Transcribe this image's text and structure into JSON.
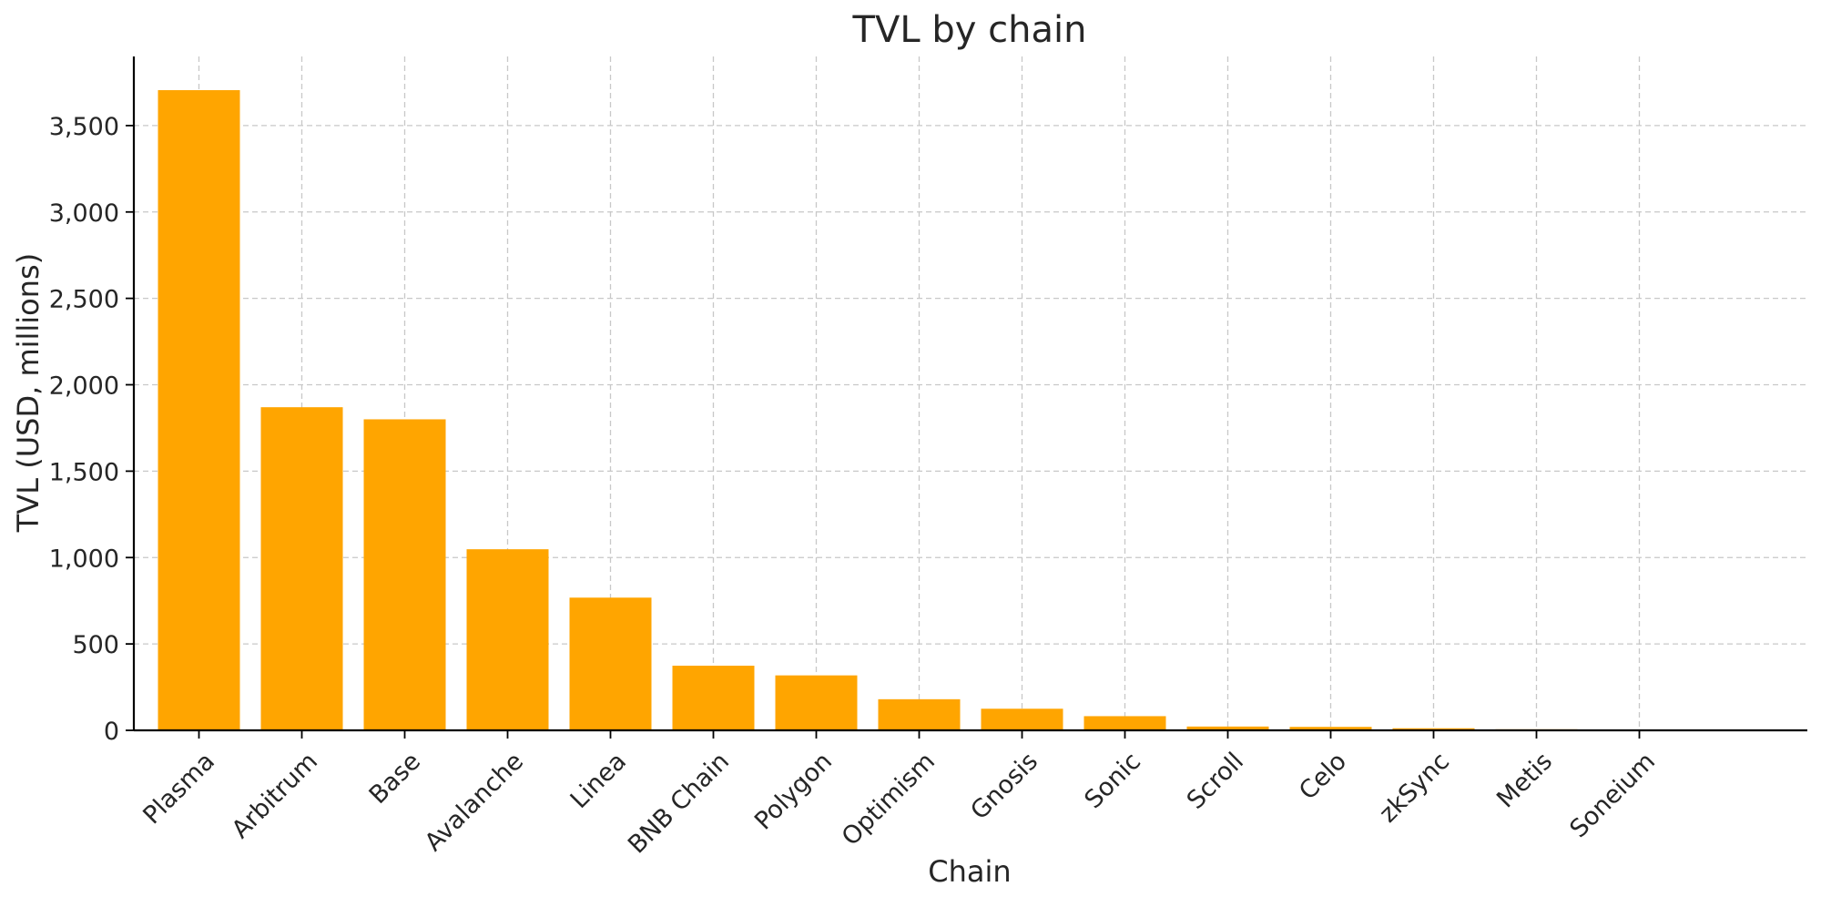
{
  "chart_data": {
    "type": "bar",
    "title": "TVL by chain",
    "xlabel": "Chain",
    "ylabel": "TVL (USD, millions)",
    "categories": [
      "Plasma",
      "Arbitrum",
      "Base",
      "Avalanche",
      "Linea",
      "BNB Chain",
      "Polygon",
      "Optimism",
      "Gnosis",
      "Sonic",
      "Scroll",
      "Celo",
      "zkSync",
      "Metis",
      "Soneium"
    ],
    "values": [
      3705,
      1870,
      1800,
      1048,
      768,
      374,
      318,
      180,
      125,
      82,
      22,
      20,
      12,
      6,
      3
    ],
    "ylim": [
      0,
      3900
    ],
    "yticks": [
      0,
      500,
      1000,
      1500,
      2000,
      2500,
      3000,
      3500
    ],
    "ytick_labels": [
      "0",
      "500",
      "1,000",
      "1,500",
      "2,000",
      "2,500",
      "3,000",
      "3,500"
    ],
    "grid": true,
    "legend": "none",
    "bar_color": "#FFA500"
  }
}
